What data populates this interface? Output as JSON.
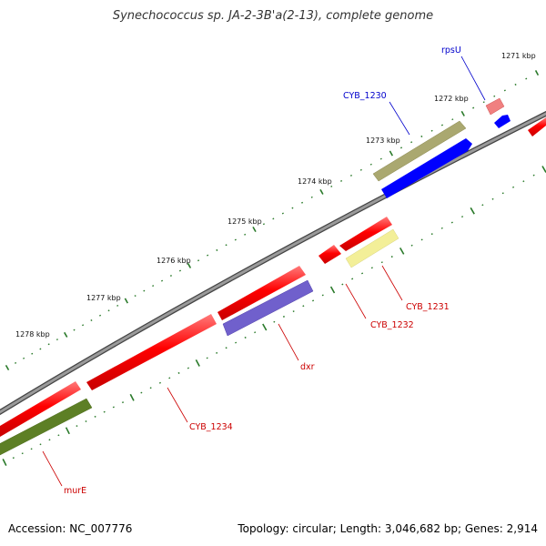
{
  "title": "Synechococcus sp. JA-2-3B'a(2-13), complete genome",
  "accession_text": "Accession: NC_007776",
  "summary_text": "Topology: circular; Length: 3,046,682 bp; Genes: 2,914",
  "colors": {
    "backbone": "#808080",
    "tick_marks": "#2a7a2a",
    "label_forward": "#0000cc",
    "label_reverse": "#cc0000",
    "feature_red": "#ff0000",
    "feature_blue": "#0000ff",
    "feature_olive": "#aaa870",
    "feature_lightyellow": "#f3ef98",
    "feature_purple": "#7060cc",
    "feature_darkgreen": "#5d7f25",
    "feature_pink": "#f08080"
  },
  "scale_labels": [
    "1271 kbp",
    "1272 kbp",
    "1273 kbp",
    "1274 kbp",
    "1275 kbp",
    "1276 kbp",
    "1277 kbp",
    "1278 kbp"
  ],
  "gene_labels": [
    {
      "text": "rpsU",
      "strand": "forward"
    },
    {
      "text": "CYB_1230",
      "strand": "forward"
    },
    {
      "text": "CYB_1231",
      "strand": "reverse"
    },
    {
      "text": "CYB_1232",
      "strand": "reverse"
    },
    {
      "text": "dxr",
      "strand": "reverse"
    },
    {
      "text": "CYB_1234",
      "strand": "reverse"
    },
    {
      "text": "murE",
      "strand": "reverse"
    }
  ]
}
